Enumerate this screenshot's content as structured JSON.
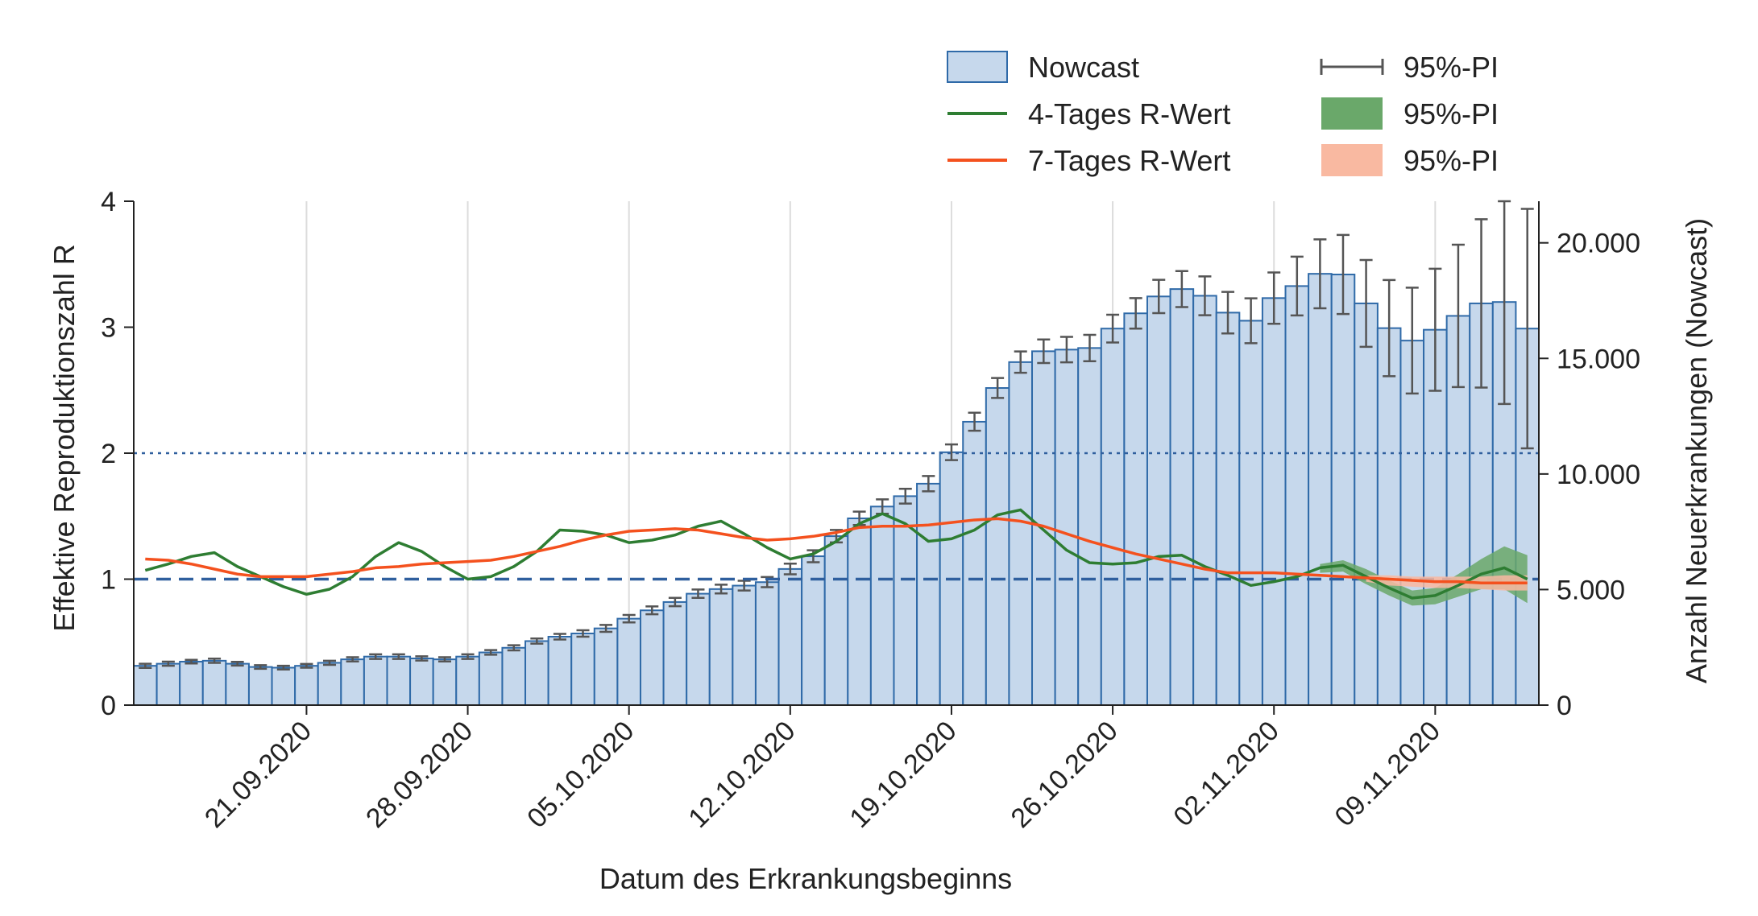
{
  "chart_data": {
    "type": "bar",
    "xlabel": "Datum des Erkrankungsbeginns",
    "ylabel_left": "Effektive Reproduktionszahl R",
    "ylabel_right": "Anzahl Neuerkrankungen (Nowcast)",
    "left_axis": {
      "ylim": [
        0,
        4
      ],
      "ticks": [
        "0",
        "1",
        "2",
        "3",
        "4"
      ]
    },
    "right_axis": {
      "ylim": [
        0,
        21800
      ],
      "ticks": [
        {
          "value": 0,
          "label": "0"
        },
        {
          "value": 5000,
          "label": "5.000"
        },
        {
          "value": 10000,
          "label": "10.000"
        },
        {
          "value": 15000,
          "label": "15.000"
        },
        {
          "value": 20000,
          "label": "20.000"
        }
      ]
    },
    "x_ticks": [
      {
        "index": 7,
        "label": "21.09.2020"
      },
      {
        "index": 14,
        "label": "28.09.2020"
      },
      {
        "index": 21,
        "label": "05.10.2020"
      },
      {
        "index": 28,
        "label": "12.10.2020"
      },
      {
        "index": 35,
        "label": "19.10.2020"
      },
      {
        "index": 42,
        "label": "26.10.2020"
      },
      {
        "index": 49,
        "label": "02.11.2020"
      },
      {
        "index": 56,
        "label": "09.11.2020"
      }
    ],
    "dates": [
      "14.09.2020",
      "15.09.2020",
      "16.09.2020",
      "17.09.2020",
      "18.09.2020",
      "19.09.2020",
      "20.09.2020",
      "21.09.2020",
      "22.09.2020",
      "23.09.2020",
      "24.09.2020",
      "25.09.2020",
      "26.09.2020",
      "27.09.2020",
      "28.09.2020",
      "29.09.2020",
      "30.09.2020",
      "01.10.2020",
      "02.10.2020",
      "03.10.2020",
      "04.10.2020",
      "05.10.2020",
      "06.10.2020",
      "07.10.2020",
      "08.10.2020",
      "09.10.2020",
      "10.10.2020",
      "11.10.2020",
      "12.10.2020",
      "13.10.2020",
      "14.10.2020",
      "15.10.2020",
      "16.10.2020",
      "17.10.2020",
      "18.10.2020",
      "19.10.2020",
      "20.10.2020",
      "21.10.2020",
      "22.10.2020",
      "23.10.2020",
      "24.10.2020",
      "25.10.2020",
      "26.10.2020",
      "27.10.2020",
      "28.10.2020",
      "29.10.2020",
      "30.10.2020",
      "31.10.2020",
      "01.11.2020",
      "02.11.2020",
      "03.11.2020",
      "04.11.2020",
      "05.11.2020",
      "06.11.2020",
      "07.11.2020",
      "08.11.2020",
      "09.11.2020",
      "10.11.2020",
      "11.11.2020",
      "12.11.2020",
      "13.11.2020"
    ],
    "series": [
      {
        "name": "Nowcast",
        "kind": "bar",
        "axis": "right",
        "color": "#c6d8ec",
        "edge_color": "#2f6aa8",
        "values": [
          1700,
          1790,
          1880,
          1920,
          1790,
          1650,
          1620,
          1700,
          1830,
          1980,
          2100,
          2100,
          2020,
          1980,
          2100,
          2280,
          2480,
          2770,
          2960,
          3100,
          3320,
          3740,
          4100,
          4460,
          4820,
          5020,
          5170,
          5320,
          5890,
          6440,
          7310,
          8080,
          8590,
          9040,
          9580,
          10940,
          12260,
          13720,
          14840,
          15310,
          15380,
          15450,
          16290,
          16950,
          17680,
          18000,
          17710,
          16980,
          16630,
          17610,
          18130,
          18660,
          18630,
          17380,
          16310,
          15770,
          16240,
          16840,
          17380,
          17440,
          16290
        ],
        "pi_lower": [
          1610,
          1700,
          1800,
          1830,
          1710,
          1570,
          1540,
          1620,
          1740,
          1890,
          2000,
          2000,
          1930,
          1890,
          2000,
          2180,
          2370,
          2660,
          2840,
          2960,
          3170,
          3580,
          3930,
          4280,
          4640,
          4830,
          4960,
          5100,
          5660,
          6180,
          7040,
          7790,
          8280,
          8720,
          9250,
          10600,
          11870,
          13290,
          14380,
          14800,
          14830,
          14880,
          15690,
          16290,
          16960,
          17220,
          16870,
          16080,
          15660,
          16500,
          16860,
          17170,
          16920,
          15500,
          14230,
          13480,
          13600,
          13760,
          13740,
          13030,
          11110
        ],
        "pi_upper": [
          1790,
          1880,
          1960,
          2010,
          1870,
          1730,
          1700,
          1780,
          1920,
          2070,
          2200,
          2200,
          2110,
          2070,
          2200,
          2380,
          2590,
          2880,
          3080,
          3240,
          3470,
          3900,
          4270,
          4640,
          5000,
          5210,
          5380,
          5540,
          6120,
          6700,
          7580,
          8370,
          8900,
          9360,
          9910,
          11280,
          12650,
          14150,
          15300,
          15820,
          15930,
          16020,
          16890,
          17610,
          18400,
          18780,
          18550,
          17880,
          17600,
          18720,
          19400,
          20150,
          20340,
          19260,
          18390,
          18060,
          18880,
          19920,
          21020,
          21800,
          21470
        ]
      },
      {
        "name": "4-Tages R-Wert",
        "kind": "line",
        "axis": "left",
        "color": "#2e7d32",
        "band_color": "#6aa86a",
        "pi_legend": "95%-PI",
        "values": [
          1.07,
          1.12,
          1.18,
          1.21,
          1.1,
          1.02,
          0.94,
          0.88,
          0.92,
          1.02,
          1.18,
          1.29,
          1.22,
          1.1,
          1.0,
          1.02,
          1.1,
          1.22,
          1.39,
          1.38,
          1.35,
          1.29,
          1.31,
          1.35,
          1.42,
          1.46,
          1.36,
          1.25,
          1.16,
          1.2,
          1.3,
          1.44,
          1.52,
          1.44,
          1.3,
          1.32,
          1.39,
          1.51,
          1.55,
          1.39,
          1.23,
          1.13,
          1.12,
          1.13,
          1.18,
          1.19,
          1.1,
          1.03,
          0.95,
          0.98,
          1.02,
          1.09,
          1.11,
          1.02,
          0.93,
          0.85,
          0.87,
          0.95,
          1.04,
          1.09,
          1.0
        ],
        "band_start_index": 51,
        "band_lower": [
          1.05,
          1.06,
          0.96,
          0.87,
          0.79,
          0.8,
          0.86,
          0.92,
          0.92,
          0.81
        ],
        "band_upper": [
          1.12,
          1.15,
          1.08,
          0.99,
          0.91,
          0.93,
          1.04,
          1.16,
          1.26,
          1.19
        ]
      },
      {
        "name": "7-Tages R-Wert",
        "kind": "line",
        "axis": "left",
        "color": "#f4511e",
        "band_color": "#f9b9a1",
        "pi_legend": "95%-PI",
        "values": [
          1.16,
          1.15,
          1.12,
          1.08,
          1.04,
          1.02,
          1.02,
          1.02,
          1.04,
          1.06,
          1.09,
          1.1,
          1.12,
          1.13,
          1.14,
          1.15,
          1.18,
          1.22,
          1.26,
          1.31,
          1.35,
          1.38,
          1.39,
          1.4,
          1.39,
          1.36,
          1.33,
          1.31,
          1.32,
          1.34,
          1.37,
          1.41,
          1.42,
          1.42,
          1.43,
          1.45,
          1.47,
          1.48,
          1.46,
          1.42,
          1.36,
          1.3,
          1.25,
          1.2,
          1.16,
          1.12,
          1.08,
          1.05,
          1.05,
          1.05,
          1.04,
          1.03,
          1.02,
          1.01,
          1.0,
          0.99,
          0.98,
          0.98,
          0.97,
          0.97,
          0.97
        ],
        "band_start_index": 53,
        "band_lower": [
          0.98,
          0.95,
          0.94,
          0.93,
          0.93,
          0.92,
          0.91,
          0.91
        ],
        "band_upper": [
          1.03,
          1.03,
          1.02,
          1.02,
          1.02,
          1.02,
          1.03,
          1.03
        ]
      }
    ],
    "reference_lines": [
      {
        "axis": "left",
        "y": 1,
        "style": "dashed",
        "color": "#2f5f9e"
      },
      {
        "axis": "left",
        "y": 2,
        "style": "dotted",
        "color": "#2f5f9e"
      }
    ],
    "grid": "vertical at date ticks",
    "legend": {
      "placement": "top-right",
      "items": [
        {
          "label": "Nowcast",
          "kind": "bar"
        },
        {
          "label": "95%-PI",
          "kind": "errorbar"
        },
        {
          "label": "4-Tages R-Wert",
          "kind": "line-green"
        },
        {
          "label": "95%-PI",
          "kind": "band-green"
        },
        {
          "label": "7-Tages R-Wert",
          "kind": "line-orange"
        },
        {
          "label": "95%-PI",
          "kind": "band-orange"
        }
      ]
    }
  }
}
